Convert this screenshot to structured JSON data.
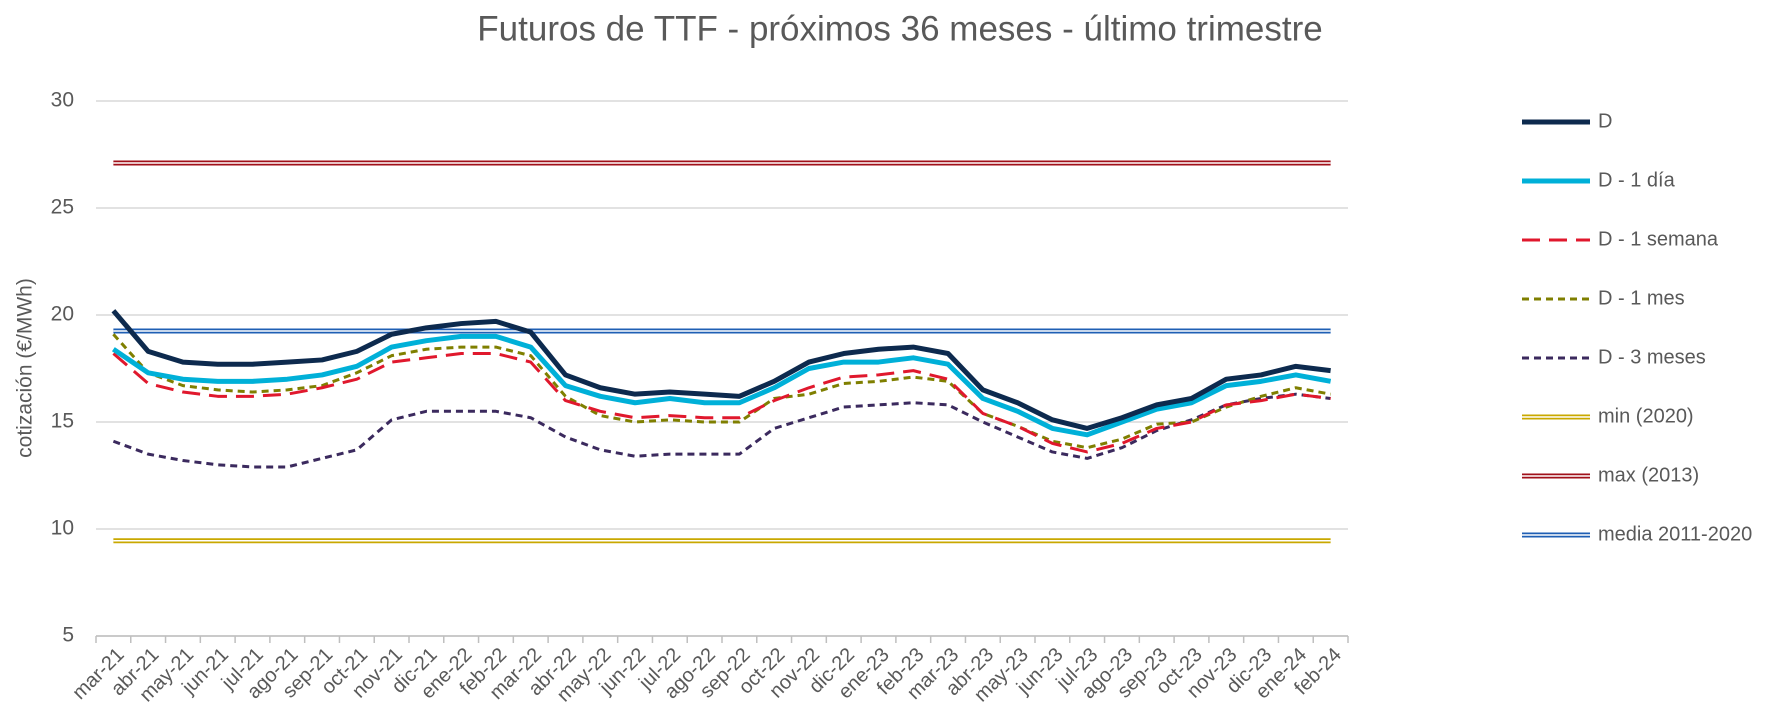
{
  "chart_data": {
    "type": "line",
    "title": "Futuros de TTF - próximos 36 meses - último trimestre",
    "y_label": "cotización (€/MWh)",
    "categories": [
      "mar-21",
      "abr-21",
      "may-21",
      "jun-21",
      "jul-21",
      "ago-21",
      "sep-21",
      "oct-21",
      "nov-21",
      "dic-21",
      "ene-22",
      "feb-22",
      "mar-22",
      "abr-22",
      "may-22",
      "jun-22",
      "jul-22",
      "ago-22",
      "sep-22",
      "oct-22",
      "nov-22",
      "dic-22",
      "ene-23",
      "feb-23",
      "mar-23",
      "abr-23",
      "may-23",
      "jun-23",
      "jul-23",
      "ago-23",
      "sep-23",
      "oct-23",
      "nov-23",
      "dic-23",
      "ene-24",
      "feb-24"
    ],
    "ylim": [
      5,
      30
    ],
    "yticks": [
      5,
      10,
      15,
      20,
      25,
      30
    ],
    "grid": true,
    "legend": "right",
    "series": [
      {
        "name": "D",
        "color": "#0d2a4e",
        "style": "solid-thick",
        "values": [
          20.2,
          18.3,
          17.8,
          17.7,
          17.7,
          17.8,
          17.9,
          18.3,
          19.1,
          19.4,
          19.6,
          19.7,
          19.2,
          17.2,
          16.6,
          16.3,
          16.4,
          16.3,
          16.2,
          16.9,
          17.8,
          18.2,
          18.4,
          18.5,
          18.2,
          16.5,
          15.9,
          15.1,
          14.7,
          15.2,
          15.8,
          16.1,
          17.0,
          17.2,
          17.6,
          17.4
        ]
      },
      {
        "name": "D - 1 día",
        "color": "#00b0d8",
        "style": "solid-thick",
        "values": [
          18.4,
          17.3,
          17.0,
          16.9,
          16.9,
          17.0,
          17.2,
          17.6,
          18.5,
          18.8,
          19.0,
          19.0,
          18.5,
          16.7,
          16.2,
          15.9,
          16.1,
          15.9,
          15.9,
          16.6,
          17.5,
          17.8,
          17.8,
          18.0,
          17.7,
          16.1,
          15.5,
          14.7,
          14.4,
          15.0,
          15.6,
          15.9,
          16.7,
          16.9,
          17.2,
          16.9
        ]
      },
      {
        "name": "D - 1 semana",
        "color": "#e0182d",
        "style": "dashed",
        "values": [
          18.2,
          16.8,
          16.4,
          16.2,
          16.2,
          16.3,
          16.6,
          17.0,
          17.8,
          18.0,
          18.2,
          18.2,
          17.8,
          16.0,
          15.5,
          15.2,
          15.3,
          15.2,
          15.2,
          16.0,
          16.6,
          17.1,
          17.2,
          17.4,
          17.0,
          15.4,
          14.8,
          14.0,
          13.6,
          14.0,
          14.7,
          15.0,
          15.8,
          16.0,
          16.3,
          16.1
        ]
      },
      {
        "name": "D - 1 mes",
        "color": "#7f7f00",
        "style": "dotted",
        "values": [
          19.1,
          17.3,
          16.7,
          16.5,
          16.4,
          16.5,
          16.7,
          17.3,
          18.1,
          18.4,
          18.5,
          18.5,
          18.1,
          16.2,
          15.3,
          15.0,
          15.1,
          15.0,
          15.0,
          16.1,
          16.3,
          16.8,
          16.9,
          17.1,
          16.9,
          15.4,
          14.8,
          14.1,
          13.8,
          14.2,
          14.9,
          15.0,
          15.7,
          16.2,
          16.6,
          16.3
        ]
      },
      {
        "name": "D - 3 meses",
        "color": "#3b2a5e",
        "style": "dotted",
        "values": [
          14.1,
          13.5,
          13.2,
          13.0,
          12.9,
          12.9,
          13.3,
          13.7,
          15.1,
          15.5,
          15.5,
          15.5,
          15.2,
          14.3,
          13.7,
          13.4,
          13.5,
          13.5,
          13.5,
          14.7,
          15.2,
          15.7,
          15.8,
          15.9,
          15.8,
          15.0,
          14.3,
          13.6,
          13.3,
          13.8,
          14.6,
          15.1,
          15.8,
          16.1,
          16.3,
          16.1
        ]
      },
      {
        "name": "min (2020)",
        "color": "#c9a800",
        "style": "double",
        "values": [
          9.45,
          9.45,
          9.45,
          9.45,
          9.45,
          9.45,
          9.45,
          9.45,
          9.45,
          9.45,
          9.45,
          9.45,
          9.45,
          9.45,
          9.45,
          9.45,
          9.45,
          9.45,
          9.45,
          9.45,
          9.45,
          9.45,
          9.45,
          9.45,
          9.45,
          9.45,
          9.45,
          9.45,
          9.45,
          9.45,
          9.45,
          9.45,
          9.45,
          9.45,
          9.45,
          9.45
        ]
      },
      {
        "name": "max (2013)",
        "color": "#a0101a",
        "style": "double",
        "values": [
          27.1,
          27.1,
          27.1,
          27.1,
          27.1,
          27.1,
          27.1,
          27.1,
          27.1,
          27.1,
          27.1,
          27.1,
          27.1,
          27.1,
          27.1,
          27.1,
          27.1,
          27.1,
          27.1,
          27.1,
          27.1,
          27.1,
          27.1,
          27.1,
          27.1,
          27.1,
          27.1,
          27.1,
          27.1,
          27.1,
          27.1,
          27.1,
          27.1,
          27.1,
          27.1,
          27.1
        ]
      },
      {
        "name": "media 2011-2020",
        "color": "#1f5fb4",
        "style": "double",
        "values": [
          19.25,
          19.25,
          19.25,
          19.25,
          19.25,
          19.25,
          19.25,
          19.25,
          19.25,
          19.25,
          19.25,
          19.25,
          19.25,
          19.25,
          19.25,
          19.25,
          19.25,
          19.25,
          19.25,
          19.25,
          19.25,
          19.25,
          19.25,
          19.25,
          19.25,
          19.25,
          19.25,
          19.25,
          19.25,
          19.25,
          19.25,
          19.25,
          19.25,
          19.25,
          19.25,
          19.25
        ]
      }
    ]
  }
}
